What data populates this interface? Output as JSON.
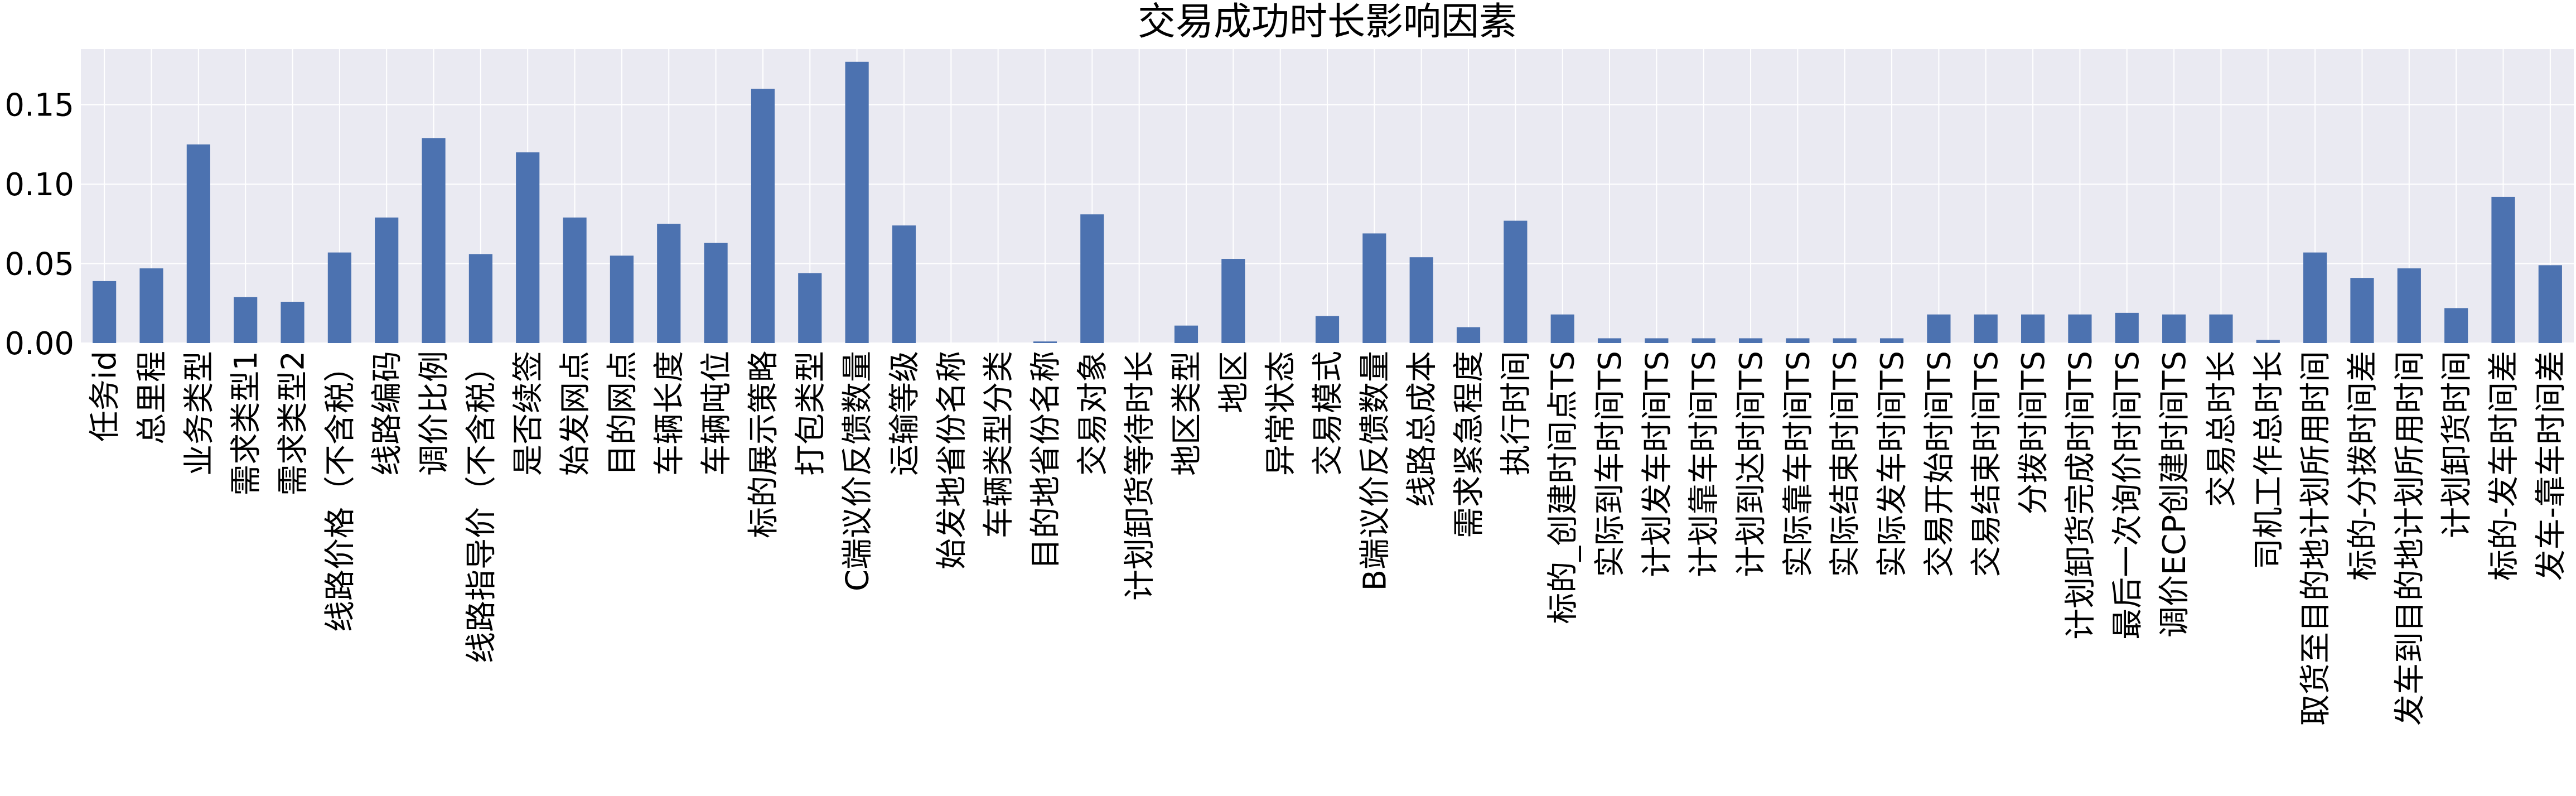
{
  "chart_data": {
    "type": "bar",
    "title": "交易成功时长影响因素",
    "xlabel": "",
    "ylabel": "",
    "ylim": [
      0,
      0.185
    ],
    "yticks": [
      0.0,
      0.05,
      0.1,
      0.15
    ],
    "ytick_labels": [
      "0.00",
      "0.05",
      "0.10",
      "0.15"
    ],
    "grid": true,
    "legend": "none",
    "colors": {
      "bar": "#4c72b0",
      "plot_background": "#eaeaf2",
      "grid": "#ffffff"
    },
    "categories": [
      "任务id",
      "总里程",
      "业务类型",
      "需求类型1",
      "需求类型2",
      "线路价格（不含税）",
      "线路编码",
      "调价比例",
      "线路指导价（不含税）",
      "是否续签",
      "始发网点",
      "目的网点",
      "车辆长度",
      "车辆吨位",
      "标的展示策略",
      "打包类型",
      "C端议价反馈数量",
      "运输等级",
      "始发地省份名称",
      "车辆类型分类",
      "目的地省份名称",
      "交易对象",
      "计划卸货等待时长",
      "地区类型",
      "地区",
      "异常状态",
      "交易模式",
      "B端议价反馈数量",
      "线路总成本",
      "需求紧急程度",
      "执行时间",
      "标的_创建时间点TS",
      "实际到车时间TS",
      "计划发车时间TS",
      "计划靠车时间TS",
      "计划到达时间TS",
      "实际靠车时间TS",
      "实际结束时间TS",
      "实际发车时间TS",
      "交易开始时间TS",
      "交易结束时间TS",
      "分拨时间TS",
      "计划卸货完成时间TS",
      "最后一次询价时间TS",
      "调价ECP创建时间TS",
      "交易总时长",
      "司机工作总时长",
      "取货至目的地计划所用时间",
      "标的-分拨时间差",
      "发车到目的地计划所用时间",
      "计划卸货时间",
      "标的-发车时间差",
      "发车-靠车时间差"
    ],
    "values": [
      0.039,
      0.047,
      0.125,
      0.029,
      0.026,
      0.057,
      0.079,
      0.129,
      0.056,
      0.12,
      0.079,
      0.055,
      0.075,
      0.063,
      0.16,
      0.044,
      0.177,
      0.074,
      0.0,
      0.0,
      0.001,
      0.081,
      0.0,
      0.011,
      0.053,
      0.0,
      0.017,
      0.069,
      0.054,
      0.01,
      0.077,
      0.018,
      0.003,
      0.003,
      0.003,
      0.003,
      0.003,
      0.003,
      0.003,
      0.018,
      0.018,
      0.018,
      0.018,
      0.019,
      0.018,
      0.018,
      0.002,
      0.057,
      0.041,
      0.047,
      0.022,
      0.092,
      0.049
    ]
  }
}
